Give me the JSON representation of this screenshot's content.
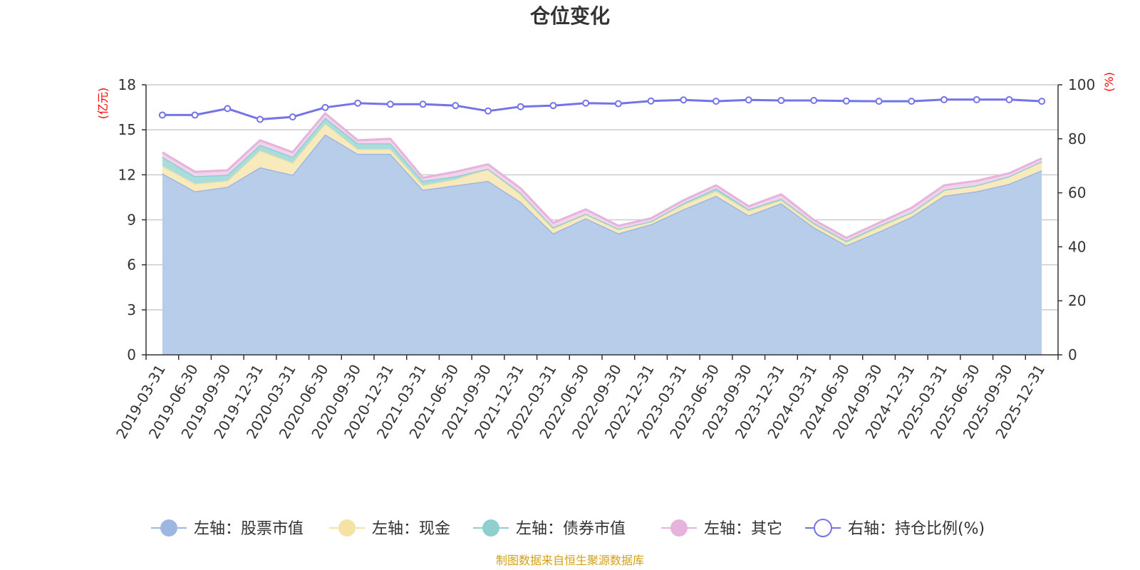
{
  "chart_data": {
    "type": "area",
    "title": "仓位变化",
    "source_note": "制图数据来自恒生聚源数据库",
    "left_unit": "(亿元)",
    "right_unit": "(%)",
    "y_left_ticks": [
      "0",
      "3",
      "6",
      "9",
      "12",
      "15",
      "18"
    ],
    "y_right_ticks": [
      "0",
      "20",
      "40",
      "60",
      "80",
      "100"
    ],
    "ylim_left": [
      0,
      18
    ],
    "ylim_right": [
      0,
      100
    ],
    "stacked": true,
    "grid": true,
    "legend_position": "bottom",
    "x": [
      "2019-03-31",
      "2019-06-30",
      "2019-09-30",
      "2019-12-31",
      "2020-03-31",
      "2020-06-30",
      "2020-09-30",
      "2020-12-31",
      "2021-03-31",
      "2021-06-30",
      "2021-09-30",
      "2021-12-31",
      "2022-03-31",
      "2022-06-30",
      "2022-09-30",
      "2022-12-31",
      "2023-03-31",
      "2023-06-30",
      "2023-09-30",
      "2023-12-31",
      "2024-03-31",
      "2024-06-30",
      "2024-09-30",
      "2024-12-31",
      "2025-03-31",
      "2025-06-30",
      "2025-09-30",
      "2025-12-31"
    ],
    "series": [
      {
        "name": "左轴：股票市值",
        "axis": "left",
        "color": "#9db7e0",
        "fill": "#b8cdea",
        "values": [
          12.1,
          10.9,
          11.2,
          12.5,
          12.0,
          14.7,
          13.4,
          13.4,
          11.0,
          11.3,
          11.6,
          10.2,
          8.1,
          9.1,
          8.1,
          8.7,
          9.7,
          10.6,
          9.3,
          10.1,
          8.5,
          7.3,
          8.2,
          9.2,
          10.6,
          10.9,
          11.4,
          12.3
        ]
      },
      {
        "name": "左轴：现金",
        "axis": "left",
        "color": "#f5e3a3",
        "fill": "#f8eabc",
        "values": [
          0.5,
          0.5,
          0.4,
          1.1,
          0.8,
          0.7,
          0.3,
          0.3,
          0.3,
          0.4,
          0.8,
          0.5,
          0.3,
          0.3,
          0.3,
          0.2,
          0.3,
          0.3,
          0.3,
          0.2,
          0.2,
          0.2,
          0.3,
          0.3,
          0.4,
          0.4,
          0.5,
          0.6
        ]
      },
      {
        "name": "左轴：债券市值",
        "axis": "left",
        "color": "#8fd0cf",
        "fill": "#a9dcdb",
        "values": [
          0.6,
          0.5,
          0.4,
          0.4,
          0.4,
          0.4,
          0.4,
          0.4,
          0.3,
          0.2,
          0.0,
          0.1,
          0.1,
          0.0,
          0.0,
          0.0,
          0.1,
          0.2,
          0.1,
          0.1,
          0.1,
          0.1,
          0.1,
          0.0,
          0.0,
          0.0,
          0.0,
          0.0
        ]
      },
      {
        "name": "左轴：其它",
        "axis": "left",
        "color": "#e6b3dc",
        "fill": "#f2d3ec",
        "values": [
          0.3,
          0.3,
          0.3,
          0.3,
          0.3,
          0.3,
          0.2,
          0.3,
          0.2,
          0.3,
          0.3,
          0.3,
          0.3,
          0.3,
          0.2,
          0.2,
          0.2,
          0.2,
          0.2,
          0.3,
          0.2,
          0.2,
          0.2,
          0.3,
          0.3,
          0.3,
          0.2,
          0.2
        ]
      },
      {
        "name": "右轴：持仓比例(%)",
        "axis": "right",
        "color": "#7474e8",
        "type": "line",
        "values": [
          88.8,
          88.8,
          91.2,
          87.2,
          88.1,
          91.6,
          93.2,
          92.8,
          92.8,
          92.3,
          90.3,
          91.9,
          92.3,
          93.2,
          93.0,
          94.0,
          94.4,
          93.9,
          94.4,
          94.2,
          94.2,
          94.0,
          93.9,
          93.9,
          94.5,
          94.5,
          94.5,
          93.9
        ]
      }
    ]
  }
}
